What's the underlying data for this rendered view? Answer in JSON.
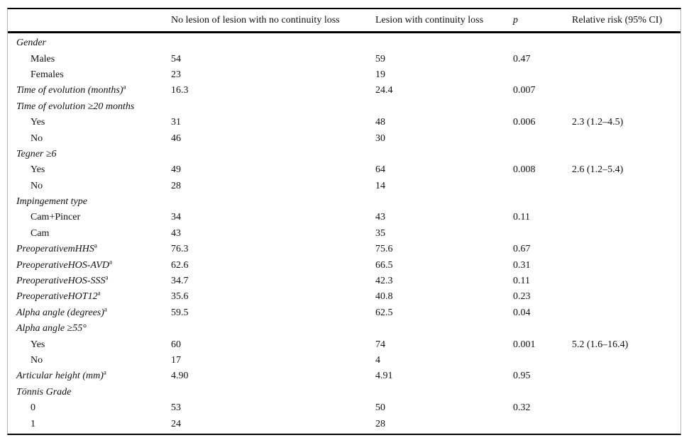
{
  "meta": {
    "background": "#ffffff",
    "text_color": "#111111",
    "rule_color": "#000000",
    "side_border_color": "#b5b5b5",
    "footnote_marker": "a"
  },
  "table": {
    "columns": [
      "",
      "No lesion of lesion with no continuity loss",
      "Lesion with continuity loss",
      "p",
      "Relative risk (95% CI)"
    ],
    "rows": [
      {
        "label": "Gender",
        "style": "italic",
        "sup": "",
        "col1": "",
        "col2": "",
        "p": "",
        "rr": ""
      },
      {
        "label": "Males",
        "style": "indent",
        "sup": "",
        "col1": "54",
        "col2": "59",
        "p": "0.47",
        "rr": ""
      },
      {
        "label": "Females",
        "style": "indent",
        "sup": "",
        "col1": "23",
        "col2": "19",
        "p": "",
        "rr": ""
      },
      {
        "label": "Time of evolution (months)",
        "style": "italic",
        "sup": "a",
        "col1": "16.3",
        "col2": "24.4",
        "p": "0.007",
        "rr": ""
      },
      {
        "label": "Time of evolution ≥20 months",
        "style": "italic",
        "sup": "",
        "col1": "",
        "col2": "",
        "p": "",
        "rr": ""
      },
      {
        "label": "Yes",
        "style": "indent",
        "sup": "",
        "col1": "31",
        "col2": "48",
        "p": "0.006",
        "rr": "2.3 (1.2–4.5)"
      },
      {
        "label": "No",
        "style": "indent",
        "sup": "",
        "col1": "46",
        "col2": "30",
        "p": "",
        "rr": ""
      },
      {
        "label": "Tegner ≥6",
        "style": "italic",
        "sup": "",
        "col1": "",
        "col2": "",
        "p": "",
        "rr": ""
      },
      {
        "label": "Yes",
        "style": "indent",
        "sup": "",
        "col1": "49",
        "col2": "64",
        "p": "0.008",
        "rr": "2.6 (1.2–5.4)"
      },
      {
        "label": "No",
        "style": "indent",
        "sup": "",
        "col1": "28",
        "col2": "14",
        "p": "",
        "rr": ""
      },
      {
        "label": "Impingement type",
        "style": "italic",
        "sup": "",
        "col1": "",
        "col2": "",
        "p": "",
        "rr": ""
      },
      {
        "label": "Cam+Pincer",
        "style": "indent",
        "sup": "",
        "col1": "34",
        "col2": "43",
        "p": "0.11",
        "rr": ""
      },
      {
        "label": "Cam",
        "style": "indent",
        "sup": "",
        "col1": "43",
        "col2": "35",
        "p": "",
        "rr": ""
      },
      {
        "label": "PreoperativemHHS",
        "style": "italic",
        "sup": "a",
        "col1": "76.3",
        "col2": "75.6",
        "p": "0.67",
        "rr": ""
      },
      {
        "label": "PreoperativeHOS-AVD",
        "style": "italic",
        "sup": "a",
        "col1": "62.6",
        "col2": "66.5",
        "p": "0.31",
        "rr": ""
      },
      {
        "label": "PreoperativeHOS-SSS",
        "style": "italic",
        "sup": "a",
        "col1": "34.7",
        "col2": "42.3",
        "p": "0.11",
        "rr": ""
      },
      {
        "label": "PreoperativeHOT12",
        "style": "italic",
        "sup": "a",
        "col1": "35.6",
        "col2": "40.8",
        "p": "0.23",
        "rr": ""
      },
      {
        "label": "Alpha angle (degrees)",
        "style": "italic",
        "sup": "a",
        "col1": "59.5",
        "col2": "62.5",
        "p": "0.04",
        "rr": ""
      },
      {
        "label": "Alpha angle ≥55°",
        "style": "italic",
        "sup": "",
        "col1": "",
        "col2": "",
        "p": "",
        "rr": ""
      },
      {
        "label": "Yes",
        "style": "indent",
        "sup": "",
        "col1": "60",
        "col2": "74",
        "p": "0.001",
        "rr": "5.2 (1.6–16.4)"
      },
      {
        "label": "No",
        "style": "indent",
        "sup": "",
        "col1": "17",
        "col2": "4",
        "p": "",
        "rr": ""
      },
      {
        "label": "Articular height (mm)",
        "style": "italic",
        "sup": "a",
        "col1": "4.90",
        "col2": "4.91",
        "p": "0.95",
        "rr": ""
      },
      {
        "label": "Tönnis Grade",
        "style": "italic",
        "sup": "",
        "col1": "",
        "col2": "",
        "p": "",
        "rr": ""
      },
      {
        "label": "0",
        "style": "indent",
        "sup": "",
        "col1": "53",
        "col2": "50",
        "p": "0.32",
        "rr": ""
      },
      {
        "label": "1",
        "style": "indent",
        "sup": "",
        "col1": "24",
        "col2": "28",
        "p": "",
        "rr": ""
      }
    ]
  }
}
